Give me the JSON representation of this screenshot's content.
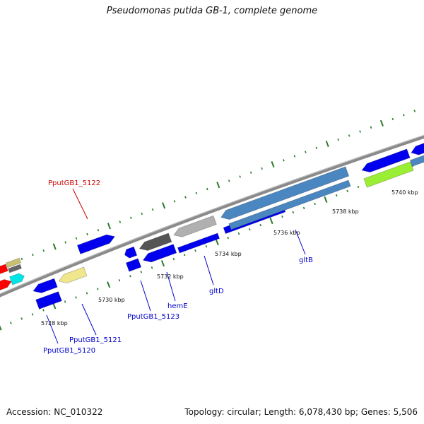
{
  "title": "Pseudomonas putida GB-1, complete genome",
  "footer": {
    "accession": "Accession: NC_010322",
    "summary": "Topology: circular; Length: 6,078,430 bp; Genes: 5,506"
  },
  "colors": {
    "backbone": "#808080",
    "tick": "#2a7a2a",
    "label_forward": "#cc0000",
    "label_reverse": "#0000cc",
    "label_tick": "#111111"
  },
  "ticks": [
    {
      "label": "5728 kbp"
    },
    {
      "label": "5730 kbp"
    },
    {
      "label": "5732 kbp"
    },
    {
      "label": "5734 kbp"
    },
    {
      "label": "5736 kbp"
    },
    {
      "label": "5738 kbp"
    },
    {
      "label": "5740 kbp"
    }
  ],
  "gene_labels": [
    {
      "text": "PputGB1_5122",
      "color": "red"
    },
    {
      "text": "PputGB1_5123",
      "color": "blue"
    },
    {
      "text": "hemE",
      "color": "blue"
    },
    {
      "text": "gltD",
      "color": "blue"
    },
    {
      "text": "gltB",
      "color": "blue"
    },
    {
      "text": "PputGB1_5121",
      "color": "blue"
    },
    {
      "text": "PputGB1_5120",
      "color": "blue"
    }
  ],
  "features": [
    {
      "name": "gene-red-left-1",
      "color": "#ff0000"
    },
    {
      "name": "gene-red-left-2",
      "color": "#ff0000"
    },
    {
      "name": "gene-cyan",
      "color": "#00e5e5"
    },
    {
      "name": "gene-khaki-small",
      "color": "#c8c070"
    },
    {
      "name": "gene-gray-small",
      "color": "#666666"
    },
    {
      "name": "gene-PputGB1_5122",
      "color": "#ff0000"
    },
    {
      "name": "gene-blue-1",
      "color": "#0000ee"
    },
    {
      "name": "gene-blue-2",
      "color": "#0000ee"
    },
    {
      "name": "gene-PputGB1_5120",
      "color": "#f0e68c"
    },
    {
      "name": "gene-blue-3",
      "color": "#0000ee"
    },
    {
      "name": "gene-blue-4",
      "color": "#0000ee"
    },
    {
      "name": "gene-gray-dark",
      "color": "#555555"
    },
    {
      "name": "gene-hemE",
      "color": "#0000ee"
    },
    {
      "name": "gene-blue-5",
      "color": "#0000ee"
    },
    {
      "name": "gene-silver",
      "color": "#b0b0b0"
    },
    {
      "name": "gene-gltD",
      "color": "#0000ee"
    },
    {
      "name": "gene-gltB-steel-1",
      "color": "#4a86c0"
    },
    {
      "name": "gene-gltB",
      "color": "#0000ee"
    },
    {
      "name": "gene-steel-2",
      "color": "#4a86c0"
    },
    {
      "name": "gene-blue-right",
      "color": "#0000ee"
    },
    {
      "name": "gene-lime",
      "color": "#9aee33"
    },
    {
      "name": "gene-blue-edge",
      "color": "#0000ee"
    },
    {
      "name": "gene-steel-edge",
      "color": "#4a86c0"
    }
  ]
}
